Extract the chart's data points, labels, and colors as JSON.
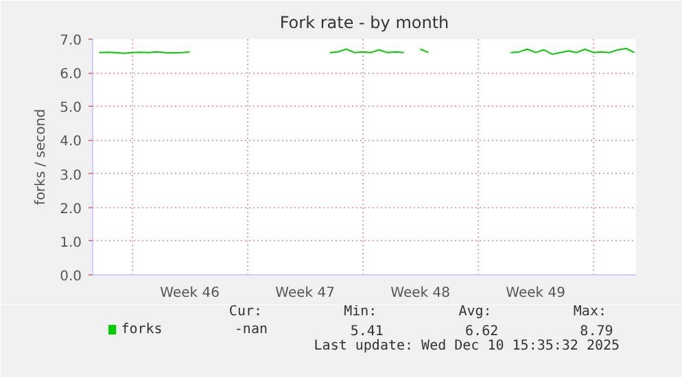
{
  "chart_data": {
    "type": "line",
    "title": "Fork rate - by month",
    "ylabel": "forks / second",
    "categories": [
      null,
      null,
      null,
      null,
      null,
      null,
      null,
      null,
      null,
      null,
      null,
      "Week 46",
      null,
      null,
      null,
      null,
      null,
      null,
      null,
      null,
      null,
      null,
      null,
      null,
      null,
      "Week 47",
      null,
      null,
      null,
      null,
      null,
      null,
      null,
      null,
      null,
      null,
      null,
      null,
      null,
      "Week 48",
      null,
      null,
      null,
      null,
      null,
      null,
      null,
      null,
      null,
      null,
      null,
      null,
      null,
      "Week 49",
      null,
      null,
      null,
      null,
      null,
      null,
      null,
      null,
      null,
      null,
      null,
      null
    ],
    "series": [
      {
        "name": "forks",
        "color": "#00cc00",
        "values": [
          6.6,
          6.61,
          6.6,
          6.58,
          6.6,
          6.61,
          6.6,
          6.62,
          6.6,
          6.59,
          6.6,
          6.62,
          null,
          null,
          null,
          null,
          null,
          null,
          null,
          null,
          null,
          null,
          null,
          null,
          null,
          null,
          null,
          null,
          6.6,
          6.62,
          6.7,
          6.6,
          6.62,
          6.6,
          6.68,
          6.6,
          6.62,
          6.6,
          null,
          6.7,
          6.6,
          null,
          null,
          null,
          null,
          null,
          null,
          null,
          null,
          null,
          6.6,
          6.62,
          6.7,
          6.6,
          6.68,
          6.55,
          6.6,
          6.65,
          6.6,
          6.7,
          6.6,
          6.62,
          6.6,
          6.68,
          6.72,
          6.6
        ]
      }
    ],
    "ylim": [
      0,
      7
    ],
    "yticks": [
      {
        "value": 0,
        "label": "0.0"
      },
      {
        "value": 1,
        "label": "1.0"
      },
      {
        "value": 2,
        "label": "2.0"
      },
      {
        "value": 3,
        "label": "3.0"
      },
      {
        "value": 4,
        "label": "4.0"
      },
      {
        "value": 5,
        "label": "5.0"
      },
      {
        "value": 6,
        "label": "6.0"
      },
      {
        "value": 7,
        "label": "7.0"
      }
    ],
    "grid": true,
    "legend": "bottom left",
    "marker": "none",
    "line_style": "solid",
    "annotations": [
      "Cur:",
      "Min:",
      "Avg:",
      "Max:",
      "-nan",
      "5.41",
      "6.62",
      "8.79",
      "Last update: Wed Dec 10 15:35:32 2025"
    ]
  }
}
